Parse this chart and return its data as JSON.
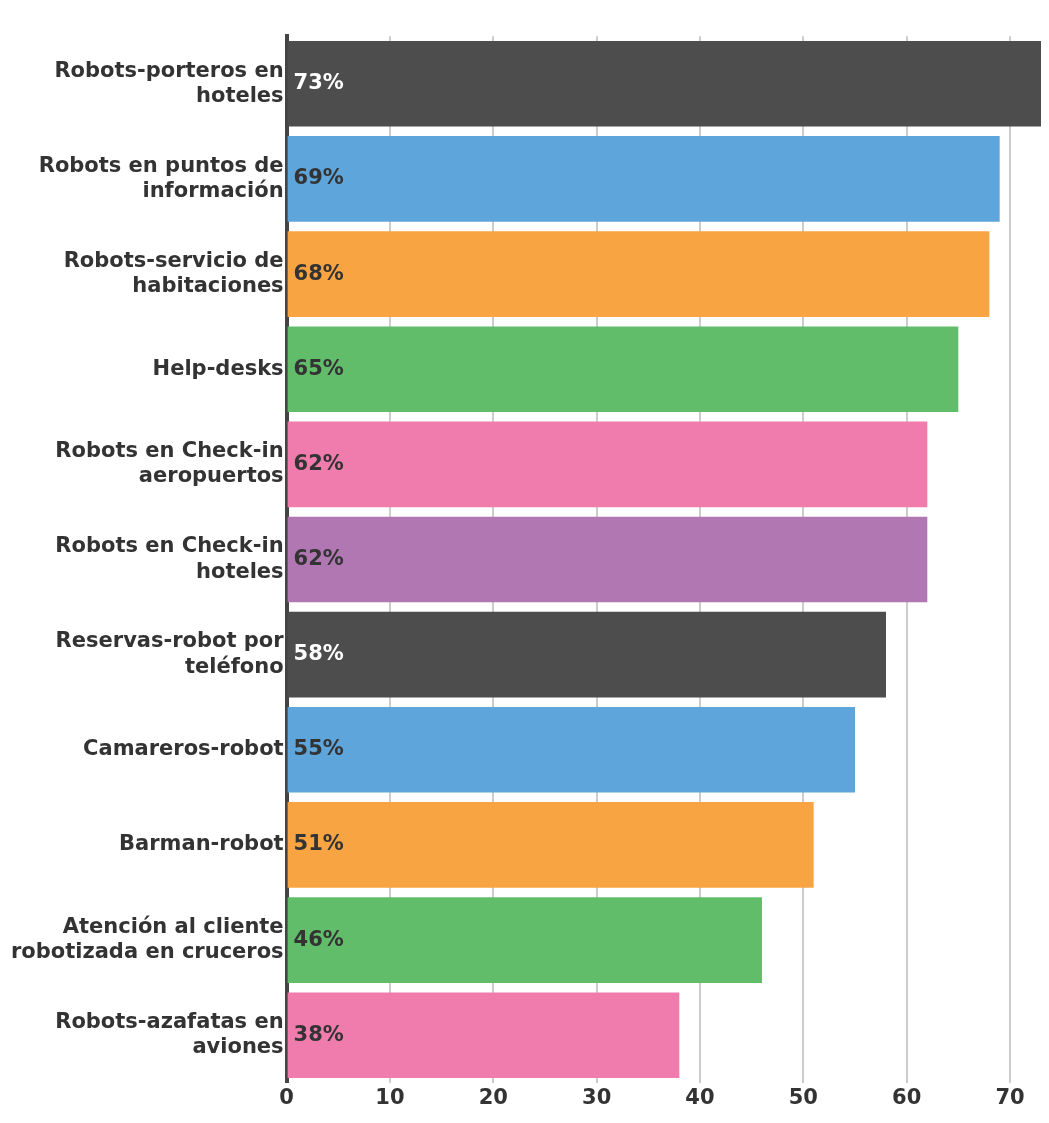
{
  "chart_data": {
    "type": "bar",
    "orientation": "horizontal",
    "categories": [
      "Robots-porteros en hoteles",
      "Robots en puntos de información",
      "Robots-servicio de habitaciones",
      "Help-desks",
      "Robots en Check-in aeropuertos",
      "Robots en Check-in hoteles",
      "Reservas-robot por teléfono",
      "Camareros-robot",
      "Barman-robot",
      "Atención al cliente robotizada en cruceros",
      "Robots-azafatas en aviones"
    ],
    "values": [
      73,
      69,
      68,
      65,
      62,
      62,
      58,
      55,
      51,
      46,
      38
    ],
    "value_labels": [
      "73%",
      "69%",
      "68%",
      "65%",
      "62%",
      "62%",
      "58%",
      "55%",
      "51%",
      "46%",
      "38%"
    ],
    "colors": [
      "#4d4d4d",
      "#5da5da",
      "#f8a442",
      "#62bd6b",
      "#f07cae",
      "#b077b2",
      "#4d4d4d",
      "#5da5da",
      "#f8a442",
      "#62bd6b",
      "#f07cae"
    ],
    "xlim": [
      0,
      73
    ],
    "xticks": [
      0,
      10,
      20,
      30,
      40,
      50,
      60,
      70
    ],
    "grid": "x",
    "legend": false
  }
}
